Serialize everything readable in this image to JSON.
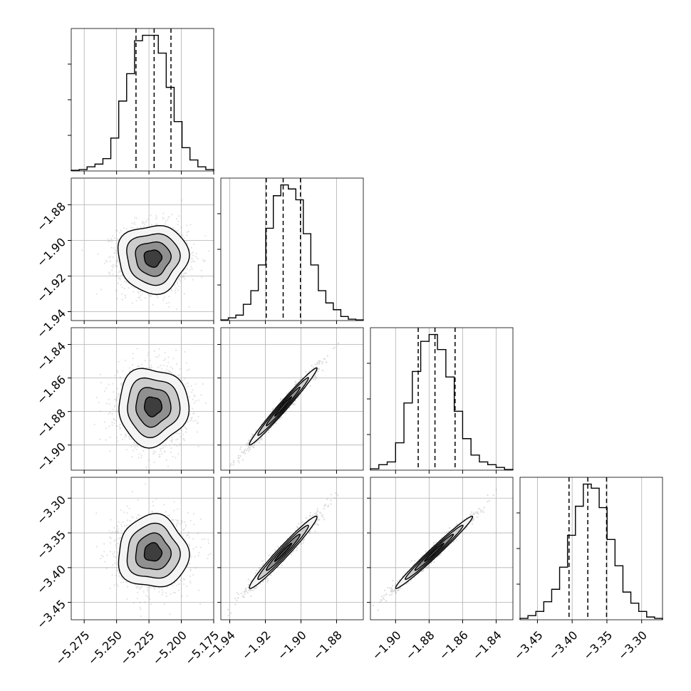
{
  "chart_data": {
    "type": "corner",
    "parameters": [
      {
        "range": [
          -5.285,
          -5.175
        ],
        "ticks": [
          {
            "value": -5.275,
            "label": "−5.275"
          },
          {
            "value": -5.25,
            "label": "−5.250"
          },
          {
            "value": -5.225,
            "label": "−5.225"
          },
          {
            "value": -5.2,
            "label": "−5.200"
          },
          {
            "value": -5.175,
            "label": "−5.175"
          }
        ],
        "quantiles": [
          -5.235,
          -5.221,
          -5.208
        ],
        "histogram": [
          0.005,
          0.01,
          0.03,
          0.05,
          0.09,
          0.24,
          0.51,
          0.71,
          0.95,
          0.99,
          0.99,
          0.86,
          0.61,
          0.36,
          0.17,
          0.08,
          0.03,
          0.01
        ]
      },
      {
        "range": [
          -1.945,
          -1.865
        ],
        "ticks": [
          {
            "value": -1.94,
            "label": "−1.94"
          },
          {
            "value": -1.92,
            "label": "−1.92"
          },
          {
            "value": -1.9,
            "label": "−1.90"
          },
          {
            "value": -1.88,
            "label": "−1.88"
          }
        ],
        "quantiles": [
          -1.9195,
          -1.91,
          -1.9003
        ],
        "histogram": [
          0.005,
          0.02,
          0.04,
          0.12,
          0.22,
          0.41,
          0.68,
          0.92,
          1.0,
          0.97,
          0.89,
          0.64,
          0.41,
          0.22,
          0.13,
          0.08,
          0.03,
          0.01,
          0.005
        ]
      },
      {
        "range": [
          -1.915,
          -1.83
        ],
        "ticks": [
          {
            "value": -1.9,
            "label": "−1.90"
          },
          {
            "value": -1.88,
            "label": "−1.88"
          },
          {
            "value": -1.86,
            "label": "−1.86"
          },
          {
            "value": -1.84,
            "label": "−1.84"
          }
        ],
        "quantiles": [
          -1.8865,
          -1.8765,
          -1.8645
        ],
        "histogram": [
          0.01,
          0.04,
          0.06,
          0.2,
          0.49,
          0.72,
          0.94,
          0.99,
          0.88,
          0.68,
          0.43,
          0.23,
          0.11,
          0.06,
          0.04,
          0.02,
          0.005
        ]
      },
      {
        "range": [
          -3.475,
          -3.27
        ],
        "ticks": [
          {
            "value": -3.45,
            "label": "−3.45"
          },
          {
            "value": -3.4,
            "label": "−3.40"
          },
          {
            "value": -3.35,
            "label": "−3.35"
          },
          {
            "value": -3.3,
            "label": "−3.30"
          }
        ],
        "quantiles": [
          -3.4045,
          -3.3775,
          -3.3505
        ],
        "histogram": [
          0.01,
          0.03,
          0.06,
          0.13,
          0.22,
          0.38,
          0.61,
          0.82,
          0.98,
          0.95,
          0.81,
          0.58,
          0.39,
          0.2,
          0.12,
          0.06,
          0.02,
          0.01
        ]
      }
    ],
    "pairs": [
      {
        "x": 0,
        "y": 1,
        "center": [
          -5.222,
          -1.91
        ],
        "sigma": [
          0.0135,
          0.0095
        ],
        "rho": 0.0
      },
      {
        "x": 0,
        "y": 2,
        "center": [
          -5.222,
          -1.877
        ],
        "sigma": [
          0.0135,
          0.0115
        ],
        "rho": 0.0
      },
      {
        "x": 1,
        "y": 2,
        "center": [
          -1.91,
          -1.877
        ],
        "sigma": [
          0.0095,
          0.0115
        ],
        "rho": 0.985
      },
      {
        "x": 0,
        "y": 3,
        "center": [
          -5.222,
          -3.378
        ],
        "sigma": [
          0.0135,
          0.026
        ],
        "rho": 0.0
      },
      {
        "x": 1,
        "y": 3,
        "center": [
          -1.91,
          -3.378
        ],
        "sigma": [
          0.0095,
          0.026
        ],
        "rho": 0.975
      },
      {
        "x": 2,
        "y": 3,
        "center": [
          -1.877,
          -3.378
        ],
        "sigma": [
          0.0115,
          0.026
        ],
        "rho": 0.985
      }
    ],
    "grid": true,
    "colors": {
      "line": "#000000",
      "grid": "#b0b0b0",
      "scatter": "#7f7f7f"
    }
  }
}
